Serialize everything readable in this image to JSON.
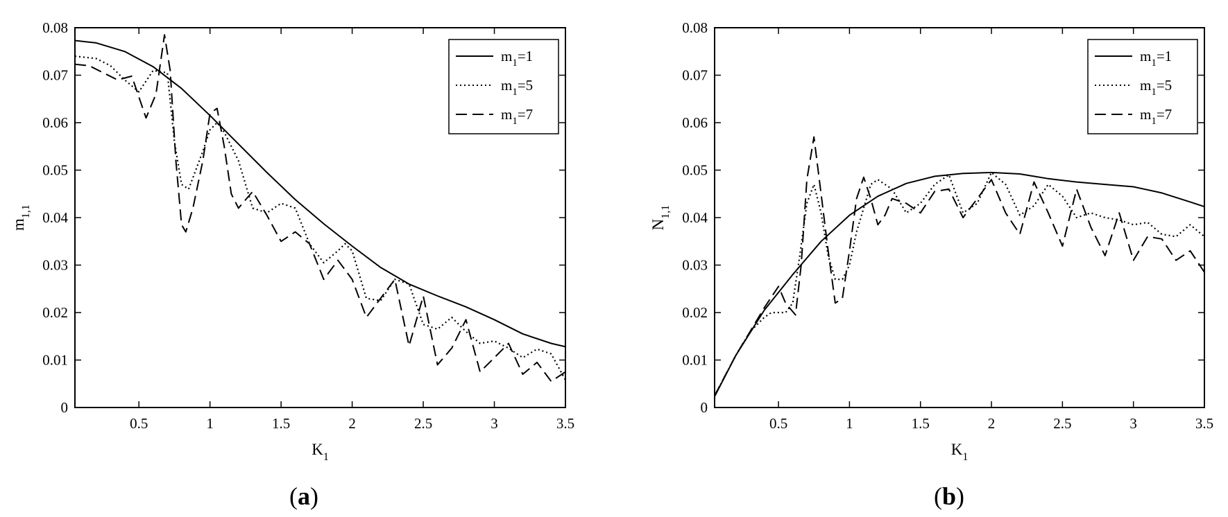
{
  "figure": {
    "panels": [
      {
        "caption_letter": "a"
      },
      {
        "caption_letter": "b"
      }
    ]
  },
  "chart_data": [
    {
      "type": "line",
      "title": "",
      "xlabel": {
        "main": "K",
        "sub": "1"
      },
      "ylabel": {
        "main": "m",
        "sub": "1,1"
      },
      "xlim": [
        0.05,
        3.5
      ],
      "ylim": [
        0,
        0.08
      ],
      "xticks": [
        0.5,
        1,
        1.5,
        2,
        2.5,
        3,
        3.5
      ],
      "xtick_labels": [
        "0.5",
        "1",
        "1.5",
        "2",
        "2.5",
        "3",
        "3.5"
      ],
      "yticks": [
        0,
        0.01,
        0.02,
        0.03,
        0.04,
        0.05,
        0.06,
        0.07,
        0.08
      ],
      "ytick_labels": [
        "0",
        "0.01",
        "0.02",
        "0.03",
        "0.04",
        "0.05",
        "0.06",
        "0.07",
        "0.08"
      ],
      "grid": false,
      "legend_position": "top-right",
      "series": [
        {
          "name": "m1=1",
          "label_main": "m",
          "label_sub": "1",
          "label_rest": "=1",
          "style": "solid",
          "x": [
            0.05,
            0.2,
            0.4,
            0.6,
            0.8,
            1.0,
            1.2,
            1.4,
            1.6,
            1.8,
            2.0,
            2.2,
            2.4,
            2.6,
            2.8,
            3.0,
            3.2,
            3.4,
            3.5
          ],
          "y": [
            0.0773,
            0.0768,
            0.075,
            0.0718,
            0.0672,
            0.0615,
            0.0555,
            0.0495,
            0.0438,
            0.0387,
            0.034,
            0.0295,
            0.026,
            0.0235,
            0.0212,
            0.0185,
            0.0155,
            0.0135,
            0.0128
          ]
        },
        {
          "name": "m1=5",
          "label_main": "m",
          "label_sub": "1",
          "label_rest": "=5",
          "style": "dotted",
          "x": [
            0.05,
            0.2,
            0.3,
            0.4,
            0.5,
            0.6,
            0.7,
            0.75,
            0.8,
            0.85,
            0.9,
            0.95,
            1.0,
            1.05,
            1.1,
            1.2,
            1.3,
            1.4,
            1.5,
            1.6,
            1.7,
            1.8,
            1.9,
            1.95,
            2.0,
            2.1,
            2.2,
            2.3,
            2.4,
            2.5,
            2.6,
            2.7,
            2.8,
            2.9,
            3.0,
            3.1,
            3.2,
            3.3,
            3.4,
            3.5
          ],
          "y": [
            0.074,
            0.0735,
            0.072,
            0.069,
            0.0665,
            0.071,
            0.0705,
            0.056,
            0.047,
            0.046,
            0.05,
            0.054,
            0.0585,
            0.06,
            0.058,
            0.052,
            0.042,
            0.041,
            0.043,
            0.042,
            0.0345,
            0.0305,
            0.033,
            0.0345,
            0.033,
            0.023,
            0.0225,
            0.027,
            0.026,
            0.0175,
            0.0165,
            0.019,
            0.016,
            0.0135,
            0.014,
            0.0125,
            0.0105,
            0.0123,
            0.0113,
            0.0058
          ]
        },
        {
          "name": "m1=7",
          "label_main": "m",
          "label_sub": "1",
          "label_rest": "=7",
          "style": "dashed",
          "x": [
            0.05,
            0.15,
            0.25,
            0.35,
            0.45,
            0.55,
            0.62,
            0.68,
            0.72,
            0.76,
            0.8,
            0.83,
            0.88,
            0.95,
            1.0,
            1.05,
            1.1,
            1.15,
            1.2,
            1.3,
            1.4,
            1.5,
            1.6,
            1.7,
            1.8,
            1.9,
            2.0,
            2.1,
            2.2,
            2.3,
            2.4,
            2.5,
            2.6,
            2.7,
            2.8,
            2.9,
            3.0,
            3.1,
            3.2,
            3.3,
            3.4,
            3.5
          ],
          "y": [
            0.0723,
            0.072,
            0.0705,
            0.069,
            0.0698,
            0.061,
            0.066,
            0.0785,
            0.071,
            0.052,
            0.0385,
            0.037,
            0.042,
            0.052,
            0.062,
            0.063,
            0.055,
            0.045,
            0.042,
            0.0455,
            0.0405,
            0.035,
            0.037,
            0.0345,
            0.027,
            0.031,
            0.027,
            0.019,
            0.023,
            0.027,
            0.013,
            0.0235,
            0.009,
            0.0125,
            0.0185,
            0.0075,
            0.0105,
            0.0135,
            0.007,
            0.0095,
            0.0055,
            0.0075
          ]
        }
      ]
    },
    {
      "type": "line",
      "title": "",
      "xlabel": {
        "main": "K",
        "sub": "1"
      },
      "ylabel": {
        "main": "N",
        "sub": "1,1"
      },
      "xlim": [
        0.05,
        3.5
      ],
      "ylim": [
        0,
        0.08
      ],
      "xticks": [
        0.5,
        1,
        1.5,
        2,
        2.5,
        3,
        3.5
      ],
      "xtick_labels": [
        "0.5",
        "1",
        "1.5",
        "2",
        "2.5",
        "3",
        "3.5"
      ],
      "yticks": [
        0,
        0.01,
        0.02,
        0.03,
        0.04,
        0.05,
        0.06,
        0.07,
        0.08
      ],
      "ytick_labels": [
        "0",
        "0.01",
        "0.02",
        "0.03",
        "0.04",
        "0.05",
        "0.06",
        "0.07",
        "0.08"
      ],
      "grid": false,
      "legend_position": "top-right",
      "series": [
        {
          "name": "m1=1",
          "label_main": "m",
          "label_sub": "1",
          "label_rest": "=1",
          "style": "solid",
          "x": [
            0.05,
            0.2,
            0.4,
            0.6,
            0.8,
            1.0,
            1.2,
            1.4,
            1.6,
            1.8,
            2.0,
            2.2,
            2.4,
            2.6,
            2.8,
            3.0,
            3.2,
            3.4,
            3.5
          ],
          "y": [
            0.0023,
            0.011,
            0.0205,
            0.028,
            0.035,
            0.0405,
            0.0445,
            0.0472,
            0.0487,
            0.0493,
            0.0495,
            0.0492,
            0.0482,
            0.0475,
            0.047,
            0.0465,
            0.0452,
            0.0433,
            0.0423
          ]
        },
        {
          "name": "m1=5",
          "label_main": "m",
          "label_sub": "1",
          "label_rest": "=5",
          "style": "dotted",
          "x": [
            0.05,
            0.2,
            0.3,
            0.4,
            0.45,
            0.55,
            0.6,
            0.65,
            0.7,
            0.75,
            0.8,
            0.85,
            0.9,
            0.95,
            1.0,
            1.05,
            1.1,
            1.15,
            1.2,
            1.3,
            1.4,
            1.5,
            1.6,
            1.7,
            1.8,
            1.9,
            2.0,
            2.1,
            2.2,
            2.3,
            2.4,
            2.5,
            2.6,
            2.7,
            2.8,
            2.9,
            3.0,
            3.1,
            3.2,
            3.3,
            3.4,
            3.5
          ],
          "y": [
            0.0025,
            0.011,
            0.016,
            0.019,
            0.02,
            0.02,
            0.022,
            0.032,
            0.043,
            0.047,
            0.041,
            0.032,
            0.027,
            0.027,
            0.03,
            0.037,
            0.042,
            0.047,
            0.048,
            0.046,
            0.041,
            0.043,
            0.047,
            0.049,
            0.041,
            0.043,
            0.0495,
            0.047,
            0.0405,
            0.0425,
            0.047,
            0.0445,
            0.04,
            0.041,
            0.04,
            0.0395,
            0.0385,
            0.039,
            0.0365,
            0.036,
            0.0385,
            0.036
          ]
        },
        {
          "name": "m1=7",
          "label_main": "m",
          "label_sub": "1",
          "label_rest": "=7",
          "style": "dashed",
          "x": [
            0.05,
            0.2,
            0.3,
            0.4,
            0.5,
            0.55,
            0.62,
            0.66,
            0.7,
            0.75,
            0.8,
            0.85,
            0.9,
            0.95,
            1.0,
            1.05,
            1.1,
            1.15,
            1.2,
            1.25,
            1.3,
            1.4,
            1.5,
            1.6,
            1.7,
            1.8,
            1.9,
            2.0,
            2.1,
            2.2,
            2.3,
            2.4,
            2.5,
            2.6,
            2.7,
            2.8,
            2.9,
            3.0,
            3.1,
            3.2,
            3.3,
            3.4,
            3.5
          ],
          "y": [
            0.0025,
            0.011,
            0.016,
            0.021,
            0.0255,
            0.022,
            0.0195,
            0.03,
            0.048,
            0.057,
            0.045,
            0.033,
            0.022,
            0.023,
            0.033,
            0.044,
            0.0485,
            0.044,
            0.0385,
            0.0405,
            0.044,
            0.043,
            0.041,
            0.0455,
            0.046,
            0.04,
            0.044,
            0.048,
            0.041,
            0.0365,
            0.0475,
            0.041,
            0.034,
            0.046,
            0.038,
            0.032,
            0.041,
            0.031,
            0.036,
            0.0355,
            0.031,
            0.033,
            0.0285
          ]
        }
      ]
    }
  ]
}
